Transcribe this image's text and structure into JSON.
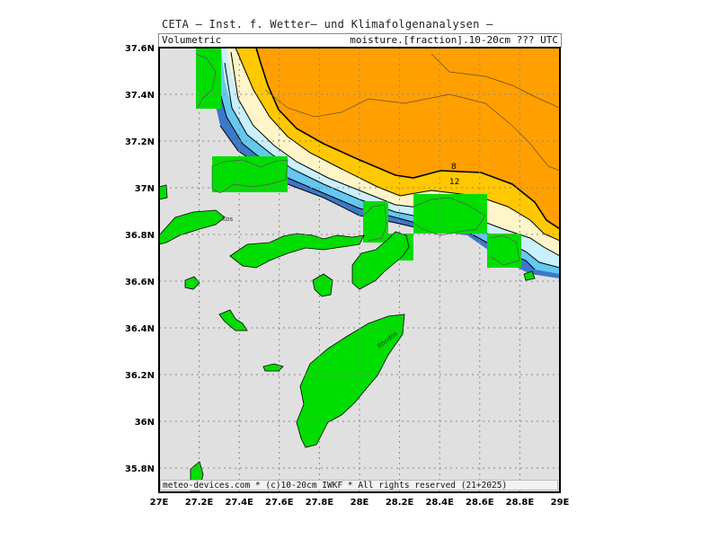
{
  "header": {
    "title": "CETA — Inst. f. Wetter— und Klimafolgenanalysen —",
    "left_label": "Volumetric",
    "right_label": "moisture.[fraction].10-20cm ??? UTC"
  },
  "footer": "meteo-devices.com * (c)10-20cm IWKF * All rights reserved (21+2025)",
  "map": {
    "lon_range": [
      27.0,
      29.0
    ],
    "lat_range": [
      35.7,
      37.6
    ],
    "x_ticks": [
      "27E",
      "27.2E",
      "27.4E",
      "27.6E",
      "27.8E",
      "28E",
      "28.2E",
      "28.4E",
      "28.6E",
      "28.8E",
      "29E"
    ],
    "y_ticks": [
      "37.6N",
      "37.4N",
      "37.2N",
      "37N",
      "36.8N",
      "36.6N",
      "36.4N",
      "36.2N",
      "36N",
      "35.8N"
    ],
    "places": [
      "Kos",
      "Rhodos"
    ],
    "contour_labels": [
      "8",
      "12"
    ],
    "colors": {
      "sea": "#e0e0e0",
      "land_mask": "#00dd00",
      "orange": "#ffa000",
      "yellow": "#ffc800",
      "cream": "#fff5c8",
      "light_cyan": "#c8f0ff",
      "cyan": "#64c8f0",
      "blue": "#3c78c8"
    }
  }
}
